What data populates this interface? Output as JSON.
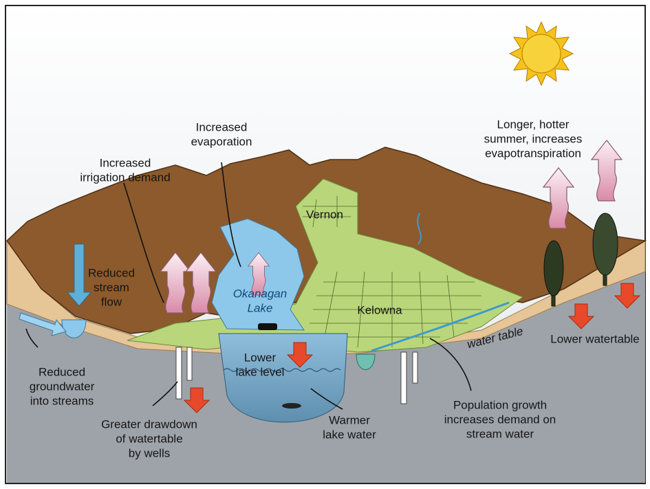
{
  "labels": [
    {
      "lines": [
        "Increased",
        "evaporation"
      ]
    },
    {
      "lines": [
        "Increased",
        "irrigation demand"
      ]
    },
    {
      "lines": [
        "Longer, hotter",
        "summer, increases",
        "evapotranspiration"
      ]
    },
    {
      "lines": [
        "Vernon"
      ]
    },
    {
      "lines": [
        "Reduced",
        "stream",
        "flow"
      ]
    },
    {
      "lines": [
        "Okanagan",
        "Lake"
      ]
    },
    {
      "lines": [
        "Kelowna"
      ]
    },
    {
      "lines": [
        "water table"
      ]
    },
    {
      "lines": [
        "Lower watertable"
      ]
    },
    {
      "lines": [
        "Reduced",
        "groundwater",
        "into streams"
      ]
    },
    {
      "lines": [
        "Lower",
        "lake level"
      ]
    },
    {
      "lines": [
        "Greater drawdown",
        "of watertable",
        "by wells"
      ]
    },
    {
      "lines": [
        "Warmer",
        "lake water"
      ]
    },
    {
      "lines": [
        "Population growth",
        "increases demand on",
        "stream water"
      ]
    }
  ]
}
